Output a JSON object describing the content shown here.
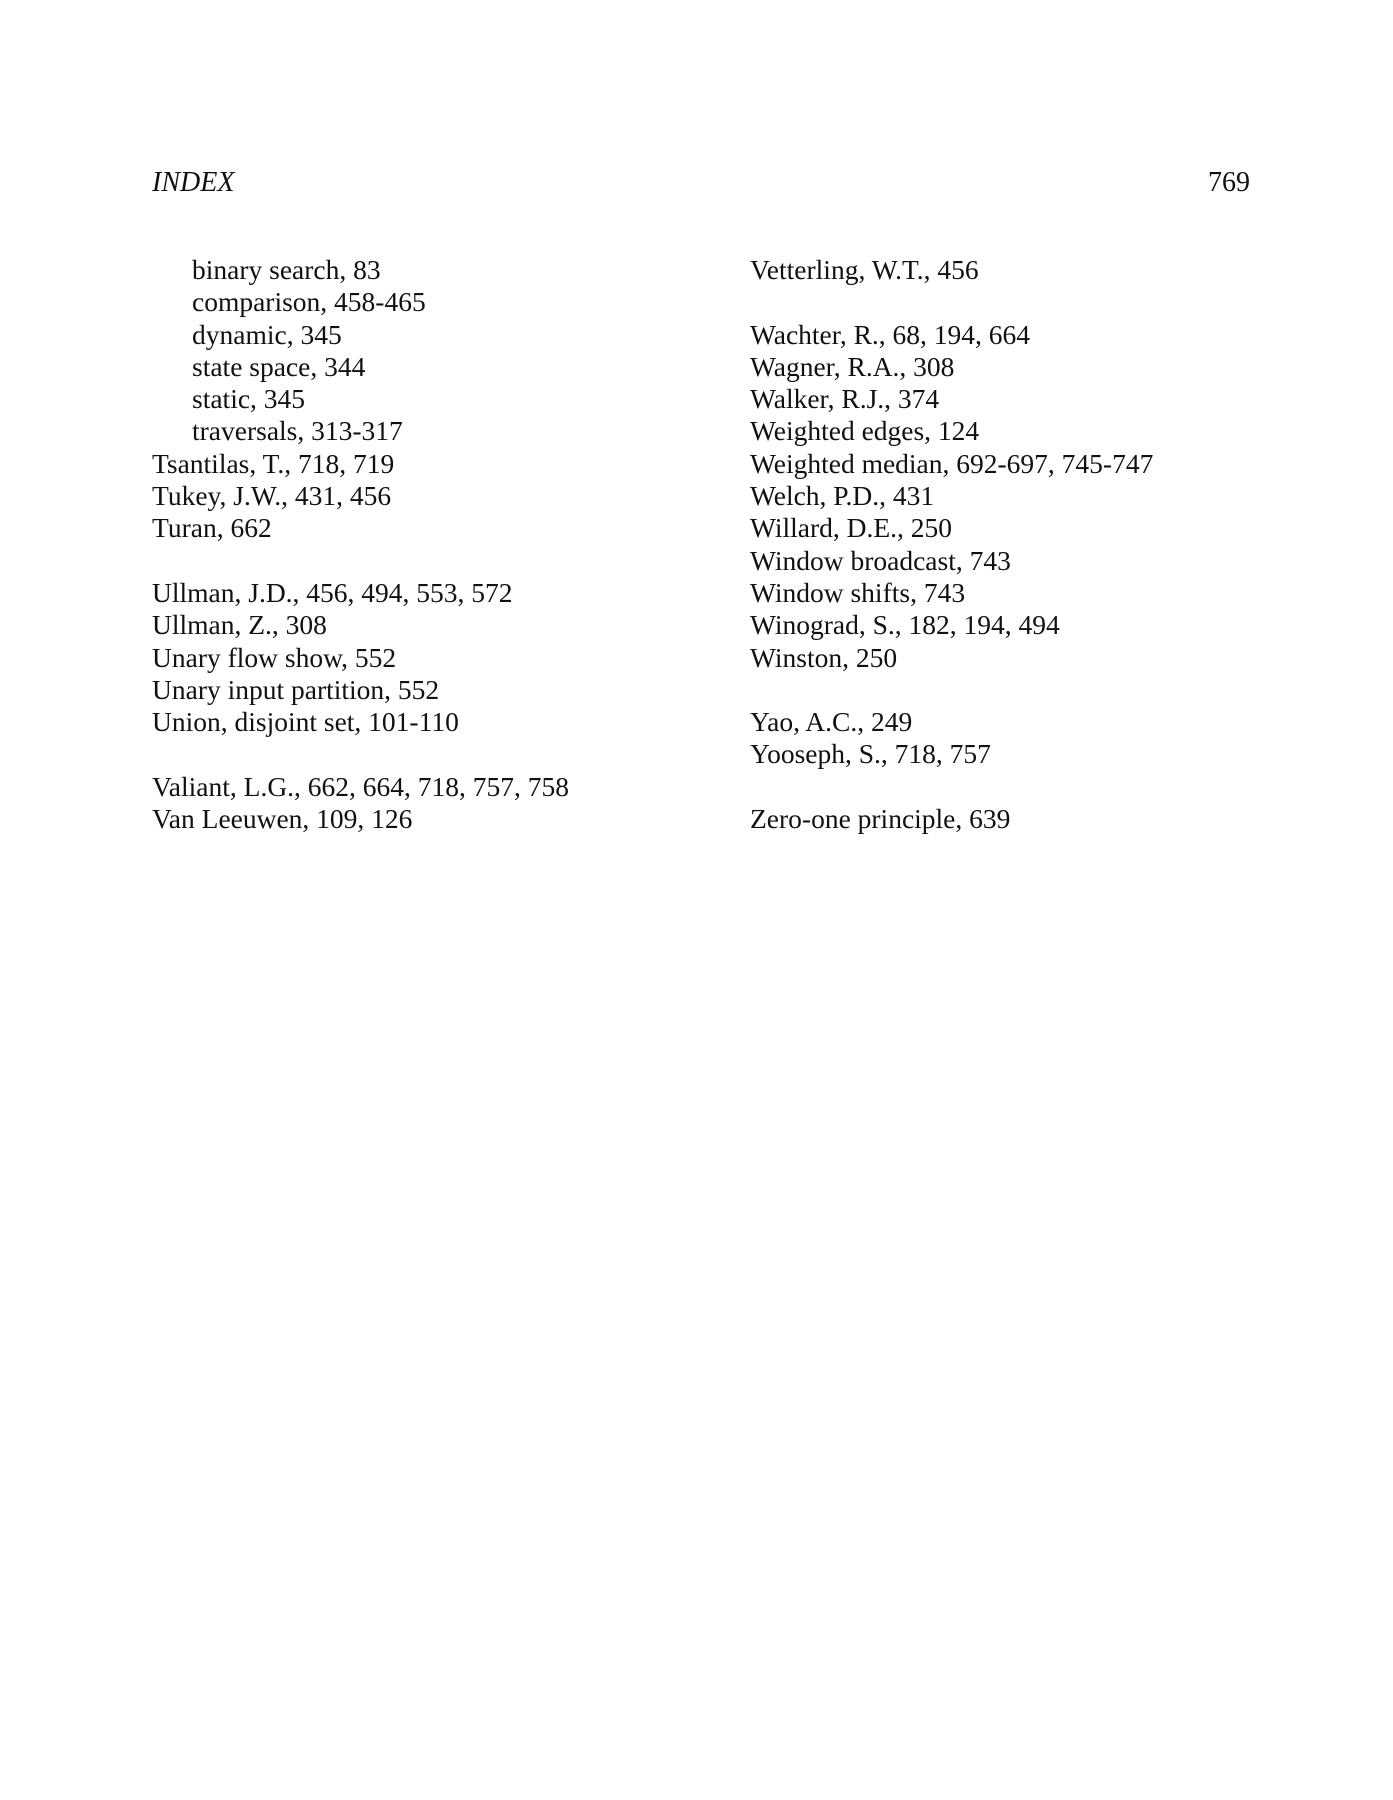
{
  "header": {
    "running_head": "INDEX",
    "page_number": "769"
  },
  "columns": [
    [
      [
        {
          "text": "binary search, 83",
          "sub": true
        },
        {
          "text": "comparison, 458-465",
          "sub": true
        },
        {
          "text": "dynamic, 345",
          "sub": true
        },
        {
          "text": "state space, 344",
          "sub": true
        },
        {
          "text": "static, 345",
          "sub": true
        },
        {
          "text": "traversals, 313-317",
          "sub": true
        },
        {
          "text": "Tsantilas, T., 718, 719"
        },
        {
          "text": "Tukey, J.W., 431, 456"
        },
        {
          "text": "Turan, 662"
        }
      ],
      [
        {
          "text": "Ullman, J.D., 456, 494, 553, 572"
        },
        {
          "text": "Ullman, Z., 308"
        },
        {
          "text": "Unary flow show, 552"
        },
        {
          "text": "Unary input partition, 552"
        },
        {
          "text": "Union, disjoint set, 101-110"
        }
      ],
      [
        {
          "text": "Valiant, L.G., 662, 664, 718, 757, 758"
        },
        {
          "text": "Van Leeuwen, 109, 126"
        }
      ]
    ],
    [
      [
        {
          "text": "Vetterling, W.T., 456"
        }
      ],
      [
        {
          "text": "Wachter, R., 68, 194, 664"
        },
        {
          "text": "Wagner, R.A., 308"
        },
        {
          "text": "Walker, R.J., 374"
        },
        {
          "text": "Weighted edges, 124"
        },
        {
          "text": "Weighted median, 692-697, 745-747"
        },
        {
          "text": "Welch, P.D., 431"
        },
        {
          "text": "Willard, D.E., 250"
        },
        {
          "text": "Window broadcast, 743"
        },
        {
          "text": "Window shifts, 743"
        },
        {
          "text": "Winograd, S., 182, 194, 494"
        },
        {
          "text": "Winston, 250"
        }
      ],
      [
        {
          "text": "Yao, A.C., 249"
        },
        {
          "text": "Yooseph, S., 718, 757"
        }
      ],
      [
        {
          "text": "Zero-one principle, 639"
        }
      ]
    ]
  ]
}
